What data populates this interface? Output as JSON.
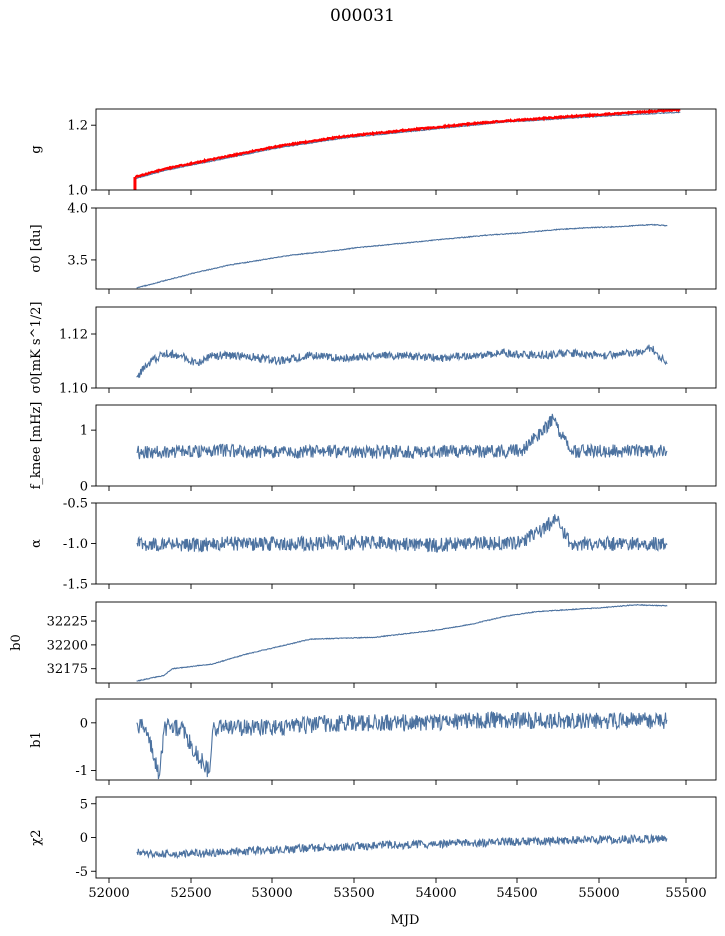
{
  "figure": {
    "title": "000031",
    "xlabel": "MJD"
  },
  "chart_data": [
    {
      "type": "line",
      "ylabel": "g",
      "ylim": [
        1.0,
        1.25
      ],
      "yticks": [
        "1.0",
        "1.2"
      ],
      "xlim": [
        51880,
        55700
      ],
      "series": [
        {
          "color": "#4c72a0",
          "x": [
            52120,
            52300,
            52600,
            52800,
            53000,
            53200,
            53400,
            53600,
            53800,
            54000,
            54200,
            54400,
            54600,
            54800,
            55000,
            55200,
            55400,
            55480
          ],
          "y": [
            1.035,
            1.06,
            1.09,
            1.11,
            1.13,
            1.145,
            1.16,
            1.17,
            1.18,
            1.19,
            1.2,
            1.21,
            1.215,
            1.222,
            1.228,
            1.233,
            1.238,
            1.24
          ]
        },
        {
          "color": "#ff0000",
          "x": [
            52120,
            52300,
            52600,
            52800,
            53000,
            53200,
            53400,
            53600,
            53800,
            54000,
            54200,
            54400,
            54600,
            54800,
            55000,
            55200,
            55400,
            55480
          ],
          "y": [
            1.04,
            1.065,
            1.095,
            1.115,
            1.135,
            1.15,
            1.165,
            1.175,
            1.185,
            1.195,
            1.205,
            1.213,
            1.22,
            1.227,
            1.233,
            1.24,
            1.245,
            1.248
          ]
        }
      ]
    },
    {
      "type": "line",
      "ylabel": "σ0 [du]",
      "ylim": [
        3.22,
        4.0
      ],
      "yticks": [
        "3.5",
        "4.0"
      ],
      "xlim": [
        51880,
        55700
      ],
      "series": [
        {
          "color": "#4c72a0",
          "x": [
            52130,
            52300,
            52500,
            52700,
            52900,
            53100,
            53300,
            53500,
            53700,
            53900,
            54100,
            54300,
            54500,
            54700,
            54900,
            55100,
            55300,
            55400
          ],
          "y": [
            3.23,
            3.3,
            3.38,
            3.45,
            3.5,
            3.55,
            3.58,
            3.62,
            3.65,
            3.68,
            3.71,
            3.74,
            3.76,
            3.79,
            3.81,
            3.82,
            3.84,
            3.83
          ]
        }
      ]
    },
    {
      "type": "line",
      "ylabel": "σ0[mK s^1/2]",
      "ylim": [
        1.1,
        1.13
      ],
      "yticks": [
        "1.10",
        "1.12"
      ],
      "xlim": [
        51880,
        55700
      ],
      "series": [
        {
          "color": "#4c72a0",
          "x": [
            52130,
            52200,
            52300,
            52400,
            52500,
            52600,
            52800,
            53000,
            53200,
            53400,
            53600,
            53800,
            54000,
            54200,
            54400,
            54600,
            54800,
            55000,
            55200,
            55300,
            55400
          ],
          "y": [
            1.104,
            1.109,
            1.113,
            1.112,
            1.109,
            1.112,
            1.112,
            1.11,
            1.112,
            1.111,
            1.112,
            1.112,
            1.111,
            1.112,
            1.113,
            1.112,
            1.113,
            1.112,
            1.113,
            1.115,
            1.109
          ]
        }
      ]
    },
    {
      "type": "line",
      "ylabel": "f_knee [mHz]",
      "ylim": [
        0,
        1.45
      ],
      "yticks": [
        "0",
        "1"
      ],
      "xlim": [
        51880,
        55700
      ],
      "series": [
        {
          "color": "#4c72a0",
          "x": [
            52130,
            52400,
            52700,
            53000,
            53300,
            53600,
            53900,
            54200,
            54500,
            54700,
            54800,
            55100,
            55400
          ],
          "y": [
            0.6,
            0.62,
            0.63,
            0.6,
            0.62,
            0.61,
            0.6,
            0.62,
            0.63,
            1.2,
            0.62,
            0.63,
            0.62
          ]
        }
      ]
    },
    {
      "type": "line",
      "ylabel": "α",
      "ylim": [
        -1.5,
        -0.5
      ],
      "yticks": [
        "-1.5",
        "-1.0",
        "-0.5"
      ],
      "xlim": [
        51880,
        55700
      ],
      "series": [
        {
          "color": "#4c72a0",
          "x": [
            52130,
            52400,
            52700,
            53000,
            53300,
            53600,
            53900,
            54200,
            54500,
            54720,
            54800,
            55100,
            55400
          ],
          "y": [
            -1.0,
            -1.02,
            -1.0,
            -1.01,
            -0.99,
            -1.0,
            -1.02,
            -1.0,
            -0.99,
            -0.7,
            -1.0,
            -1.0,
            -1.01
          ]
        }
      ]
    },
    {
      "type": "line",
      "ylabel": "b0",
      "ylim": [
        32160,
        32245
      ],
      "yticks": [
        "32175",
        "32200",
        "32225"
      ],
      "xlim": [
        51880,
        55700
      ],
      "series": [
        {
          "color": "#4c72a0",
          "x": [
            52130,
            52300,
            52350,
            52600,
            52800,
            53000,
            53200,
            53400,
            53600,
            53800,
            54000,
            54200,
            54400,
            54600,
            54800,
            55000,
            55200,
            55400
          ],
          "y": [
            32162,
            32168,
            32175,
            32180,
            32190,
            32198,
            32206,
            32207,
            32208,
            32212,
            32216,
            32222,
            32230,
            32235,
            32237,
            32239,
            32242,
            32241
          ]
        }
      ]
    },
    {
      "type": "line",
      "ylabel": "b1",
      "ylim": [
        -1.2,
        0.5
      ],
      "yticks": [
        "-1",
        "0"
      ],
      "xlim": [
        51880,
        55700
      ],
      "series": [
        {
          "color": "#4c72a0",
          "x": [
            52130,
            52200,
            52270,
            52300,
            52400,
            52580,
            52600,
            52800,
            53000,
            53400,
            53800,
            54200,
            54600,
            55000,
            55400
          ],
          "y": [
            0.0,
            -0.2,
            -1.15,
            -0.1,
            -0.1,
            -1.05,
            -0.1,
            -0.1,
            -0.1,
            0.0,
            0.0,
            0.05,
            0.05,
            0.05,
            0.05
          ]
        }
      ]
    },
    {
      "type": "line",
      "ylabel": "χ2",
      "ylim": [
        -6,
        6
      ],
      "yticks": [
        "-5",
        "0",
        "5"
      ],
      "xlim": [
        51880,
        55700
      ],
      "xticks": [
        "52000",
        "52500",
        "53000",
        "53500",
        "54000",
        "54500",
        "55000",
        "55500"
      ],
      "series": [
        {
          "color": "#4c72a0",
          "x": [
            52130,
            52400,
            52700,
            53000,
            53300,
            53600,
            53900,
            54200,
            54500,
            54800,
            55100,
            55400
          ],
          "y": [
            -2.2,
            -2.5,
            -2.2,
            -1.8,
            -1.5,
            -1.2,
            -1.0,
            -0.8,
            -0.6,
            -0.4,
            -0.3,
            -0.2
          ]
        }
      ]
    }
  ]
}
